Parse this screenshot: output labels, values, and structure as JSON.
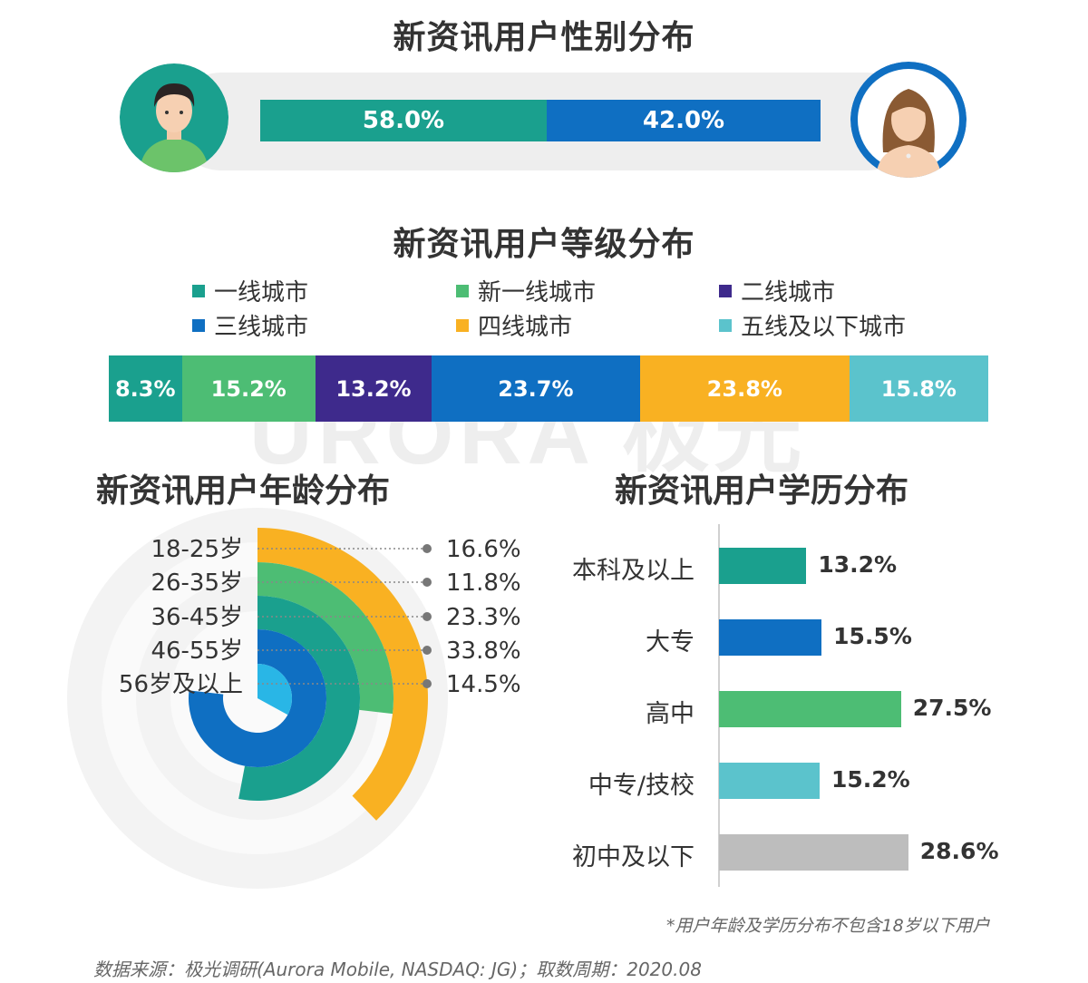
{
  "watermark": "URORA 极光",
  "gender": {
    "title": "新资讯用户性别分布",
    "male": {
      "value": 58.0,
      "label": "58.0%",
      "color": "#1aa08e"
    },
    "female": {
      "value": 42.0,
      "label": "42.0%",
      "color": "#0f6fc2"
    }
  },
  "tier": {
    "title": "新资讯用户等级分布",
    "legend": [
      "一线城市",
      "新一线城市",
      "二线城市",
      "三线城市",
      "四线城市",
      "五线及以下城市"
    ],
    "labels": [
      "8.3%",
      "15.2%",
      "13.2%",
      "23.7%",
      "23.8%",
      "15.8%"
    ]
  },
  "age": {
    "title": "新资讯用户年龄分布",
    "categories": [
      "18-25岁",
      "26-35岁",
      "36-45岁",
      "46-55岁",
      "56岁及以上"
    ],
    "labels": [
      "16.6%",
      "11.8%",
      "23.3%",
      "33.8%",
      "14.5%"
    ]
  },
  "education": {
    "title": "新资讯用户学历分布",
    "categories": [
      "本科及以上",
      "大专",
      "高中",
      "中专/技校",
      "初中及以下"
    ],
    "labels": [
      "13.2%",
      "15.5%",
      "27.5%",
      "15.2%",
      "28.6%"
    ],
    "note": "*用户年龄及学历分布不包含18岁以下用户"
  },
  "source": "数据来源：极光调研(Aurora Mobile, NASDAQ: JG)；取数周期：2020.08",
  "chart_data": [
    {
      "type": "bar",
      "title": "新资讯用户性别分布",
      "categories": [
        "男",
        "女"
      ],
      "values": [
        58.0,
        42.0
      ],
      "colors": [
        "#1aa08e",
        "#0f6fc2"
      ],
      "stacked": true,
      "unit": "%"
    },
    {
      "type": "bar",
      "title": "新资讯用户等级分布",
      "categories": [
        "一线城市",
        "新一线城市",
        "二线城市",
        "三线城市",
        "四线城市",
        "五线及以下城市"
      ],
      "values": [
        8.3,
        15.2,
        13.2,
        23.7,
        23.8,
        15.8
      ],
      "colors": [
        "#1aa08e",
        "#4dbd74",
        "#3e2a8c",
        "#0f6fc2",
        "#f9b122",
        "#5bc3cc"
      ],
      "stacked": true,
      "legend": "top",
      "unit": "%"
    },
    {
      "type": "bar",
      "title": "新资讯用户年龄分布",
      "orientation": "radial",
      "categories": [
        "18-25岁",
        "26-35岁",
        "36-45岁",
        "46-55岁",
        "56岁及以上"
      ],
      "values": [
        16.6,
        11.8,
        23.3,
        33.8,
        14.5
      ],
      "colors": [
        "#f9b122",
        "#4dbd74",
        "#1aa08e",
        "#0f6fc2",
        "#29b6e6"
      ],
      "unit": "%"
    },
    {
      "type": "bar",
      "title": "新资讯用户学历分布",
      "orientation": "horizontal",
      "categories": [
        "本科及以上",
        "大专",
        "高中",
        "中专/技校",
        "初中及以下"
      ],
      "values": [
        13.2,
        15.5,
        27.5,
        15.2,
        28.6
      ],
      "colors": [
        "#1aa08e",
        "#0f6fc2",
        "#4dbd74",
        "#5bc3cc",
        "#bdbdbd"
      ],
      "unit": "%"
    }
  ]
}
